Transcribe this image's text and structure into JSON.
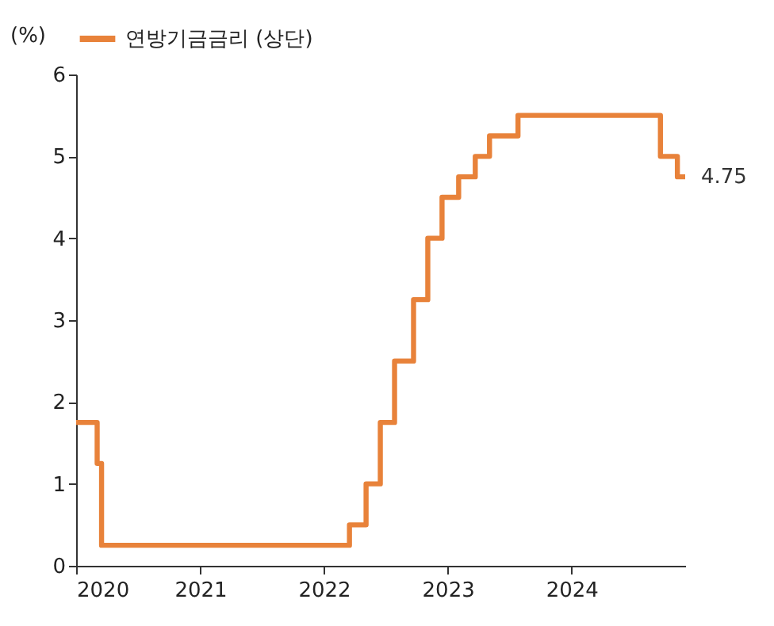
{
  "chart_data": {
    "type": "step",
    "ylabel": "(%)",
    "x": [
      "2020-01-01",
      "2020-03-03",
      "2020-03-16",
      "2022-03-17",
      "2022-05-05",
      "2022-06-16",
      "2022-07-28",
      "2022-09-22",
      "2022-11-03",
      "2022-12-15",
      "2023-02-02",
      "2023-03-23",
      "2023-05-04",
      "2023-07-27",
      "2024-09-19",
      "2024-11-08",
      "2024-12-01"
    ],
    "series": [
      {
        "name": "연방기금금리 (상단)",
        "color": "#e8823a",
        "values": [
          1.75,
          1.25,
          0.25,
          0.5,
          1.0,
          1.75,
          2.5,
          3.25,
          4.0,
          4.5,
          4.75,
          5.0,
          5.25,
          5.5,
          5.0,
          4.75,
          4.75
        ]
      }
    ],
    "xlim": [
      "2020-01-01",
      "2024-12-01"
    ],
    "xticks": [
      "2020",
      "2021",
      "2022",
      "2023",
      "2024"
    ],
    "ylim": [
      0,
      6
    ],
    "yticks": [
      0,
      1,
      2,
      3,
      4,
      5,
      6
    ],
    "annotations": [
      {
        "text": "4.75",
        "x": "2024-12-01",
        "y": 4.75
      }
    ],
    "legend": "top",
    "grid": false,
    "marker": "none",
    "line_style": "solid"
  }
}
